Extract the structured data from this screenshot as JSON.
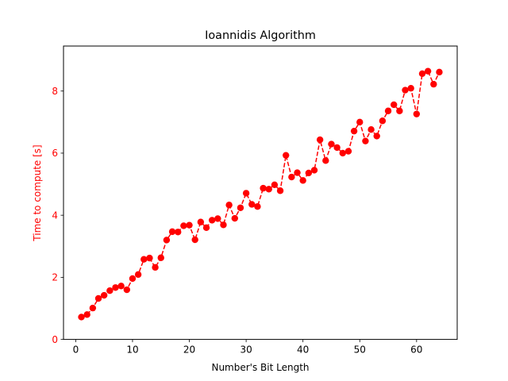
{
  "chart_data": {
    "type": "line",
    "title": "Ioannidis Algorithm",
    "xlabel": "Number's Bit Length",
    "ylabel": "Time to compute [s]",
    "xlim": [
      -2.15,
      67.15
    ],
    "ylim": [
      0,
      9.45
    ],
    "xticks": [
      "0",
      "10",
      "20",
      "30",
      "40",
      "50",
      "60"
    ],
    "yticks": [
      "0",
      "2",
      "4",
      "6",
      "8"
    ],
    "grid": false,
    "legend": "none",
    "series": [
      {
        "color": "#ff0000",
        "line_style": "dashed",
        "marker": "circle",
        "x": [
          1,
          2,
          3,
          4,
          5,
          6,
          7,
          8,
          9,
          10,
          11,
          12,
          13,
          14,
          15,
          16,
          17,
          18,
          19,
          20,
          21,
          22,
          23,
          24,
          25,
          26,
          27,
          28,
          29,
          30,
          31,
          32,
          33,
          34,
          35,
          36,
          37,
          38,
          39,
          40,
          41,
          42,
          43,
          44,
          45,
          46,
          47,
          48,
          49,
          50,
          51,
          52,
          53,
          54,
          55,
          56,
          57,
          58,
          59,
          60,
          61,
          62,
          63,
          64
        ],
        "values": [
          0.72,
          0.8,
          1.01,
          1.32,
          1.42,
          1.57,
          1.67,
          1.72,
          1.6,
          1.96,
          2.09,
          2.58,
          2.62,
          2.32,
          2.63,
          3.2,
          3.47,
          3.46,
          3.66,
          3.68,
          3.21,
          3.78,
          3.6,
          3.84,
          3.89,
          3.69,
          4.33,
          3.9,
          4.24,
          4.71,
          4.35,
          4.28,
          4.87,
          4.84,
          4.98,
          4.79,
          5.93,
          5.23,
          5.37,
          5.12,
          5.36,
          5.45,
          6.43,
          5.76,
          6.29,
          6.18,
          6.0,
          6.06,
          6.71,
          7.0,
          6.39,
          6.76,
          6.55,
          7.04,
          7.36,
          7.56,
          7.36,
          8.03,
          8.09,
          7.26,
          8.56,
          8.64,
          8.22,
          8.61
        ]
      }
    ]
  },
  "colors": {
    "accent": "#ff0000",
    "axis": "#000000"
  }
}
